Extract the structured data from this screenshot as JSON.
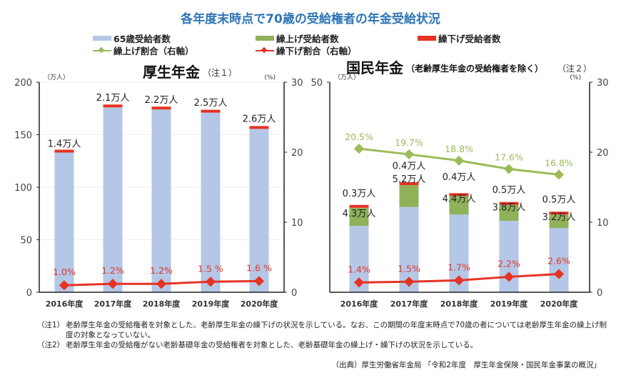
{
  "title": "各年度末時点で70歳の受給権者の年金受給状況",
  "legend": [
    {
      "label": "65歳受給者数",
      "color": "#b4c7e7",
      "kind": "bar"
    },
    {
      "label": "繰上げ受給者数",
      "color": "#8fb15a",
      "kind": "bar"
    },
    {
      "label": "繰下げ受給者数",
      "color": "#e53324",
      "kind": "bar"
    },
    {
      "label": "繰上げ割合（右軸）",
      "color": "#9bbb59",
      "kind": "line"
    },
    {
      "label": "繰下げ割合（右軸）",
      "color": "#e53324",
      "kind": "line"
    }
  ],
  "chart_data": [
    {
      "type": "bar",
      "title": "厚生年金",
      "title_note": "（注１）",
      "ylabel_left": "（万人）",
      "ylabel_right": "(%)",
      "ylim": [
        0,
        200
      ],
      "yticks": [
        "0",
        "50",
        "100",
        "150",
        "200"
      ],
      "y2lim": [
        0,
        30
      ],
      "y2ticks": [
        "0",
        "10",
        "20",
        "30"
      ],
      "categories": [
        "2016年度",
        "2017年度",
        "2018年度",
        "2019年度",
        "2020年度"
      ],
      "series": [
        {
          "name": "65歳受給者数",
          "values": [
            133,
            176,
            174,
            171,
            155.5
          ]
        },
        {
          "name": "繰下げ受給者数",
          "values": [
            1.4,
            2.1,
            2.2,
            2.5,
            2.6
          ],
          "labels": [
            "1.4万人",
            "2.1万人",
            "2.2万人",
            "2.5万人",
            "2.6万人"
          ]
        },
        {
          "name": "繰下げ割合（右軸）",
          "type": "line",
          "values": [
            1.0,
            1.2,
            1.2,
            1.5,
            1.6
          ],
          "labels": [
            "1.0%",
            "1.2%",
            "1.2%",
            "1.5 %",
            "1.6 %"
          ]
        }
      ],
      "grid": true
    },
    {
      "type": "bar",
      "title": "国民年金",
      "title_note": "（老齢厚生年金の受給権者を除く）",
      "title_note2": "（注２）",
      "ylabel_left": "（万人）",
      "ylabel_right": "(%)",
      "ylim": [
        0,
        50
      ],
      "yticks": [
        "50"
      ],
      "y2lim": [
        0,
        30
      ],
      "y2ticks": [
        "0",
        "10",
        "20",
        "30"
      ],
      "categories": [
        "2016年度",
        "2017年度",
        "2018年度",
        "2019年度",
        "2020年度"
      ],
      "series": [
        {
          "name": "65歳受給者数",
          "values": [
            15.8,
            20.3,
            18.5,
            17.0,
            15.3
          ]
        },
        {
          "name": "繰上げ受給者数",
          "values": [
            4.3,
            5.2,
            4.4,
            3.8,
            3.2
          ],
          "labels": [
            "4.3万人",
            "5.2万人",
            "4.4万人",
            "3.8万人",
            "3.2万人"
          ]
        },
        {
          "name": "繰下げ受給者数",
          "values": [
            0.3,
            0.4,
            0.4,
            0.5,
            0.5
          ],
          "labels": [
            "0.3万人",
            "0.4万人",
            "0.4万人",
            "0.5万人",
            "0.5万人"
          ]
        },
        {
          "name": "繰上げ割合（右軸）",
          "type": "line",
          "values": [
            20.5,
            19.7,
            18.8,
            17.6,
            16.8
          ],
          "labels": [
            "20.5%",
            "19.7%",
            "18.8%",
            "17.6%",
            "16.8%"
          ]
        },
        {
          "name": "繰下げ割合（右軸）",
          "type": "line",
          "values": [
            1.4,
            1.5,
            1.7,
            2.2,
            2.6
          ],
          "labels": [
            "1.4%",
            "1.5%",
            "1.7%",
            "2.2%",
            "2.6%"
          ]
        }
      ],
      "grid": false
    }
  ],
  "notes": [
    {
      "key": "（注1）",
      "text": "老齢厚生年金の受給権者を対象とした、老齢厚生年金の繰下げの状況を示している。なお、この期間の年度末時点で70歳の者については老齢厚生年金の繰上げ制度の対象となっていない。"
    },
    {
      "key": "（注2）",
      "text": "老齢厚生年金の受給権がない老齢基礎年金の受給権者を対象とした、老齢基礎年金の繰上げ・繰下げの状況を示している。"
    }
  ],
  "source": "（出典）厚生労働省年金局 「令和2年度　厚生年金保険・国民年金事業の概況」"
}
